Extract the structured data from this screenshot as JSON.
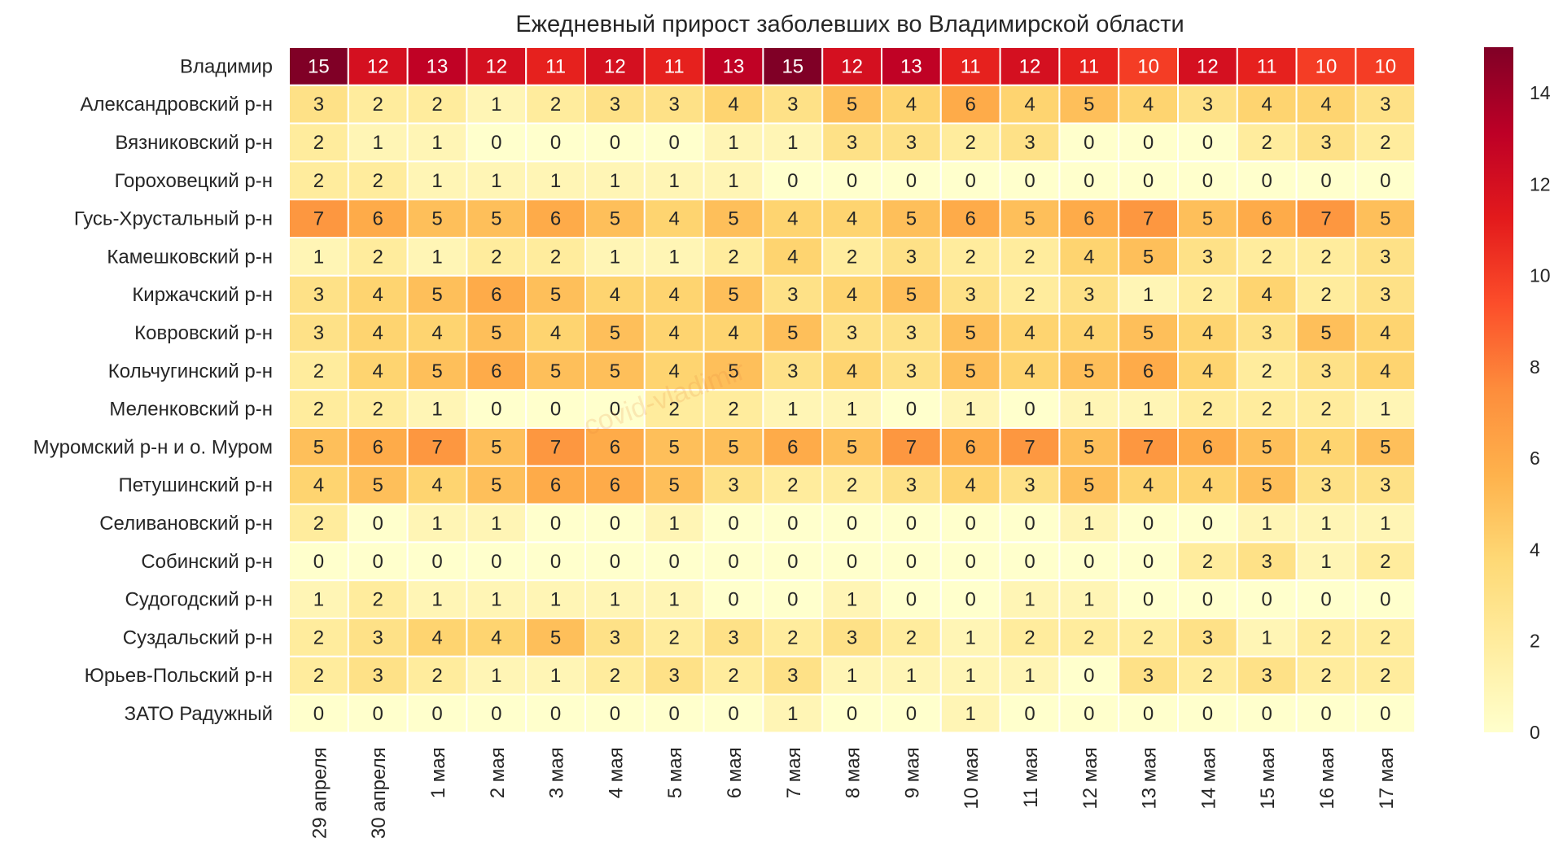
{
  "chart_data": {
    "type": "heatmap",
    "title": "Ежедневный прирост заболевших во Владимирской области",
    "xlabel": "",
    "ylabel": "",
    "watermark": "covid-vladimir",
    "columns": [
      "29 апреля",
      "30 апреля",
      "1 мая",
      "2 мая",
      "3 мая",
      "4 мая",
      "5 мая",
      "6 мая",
      "7 мая",
      "8 мая",
      "9 мая",
      "10 мая",
      "11 мая",
      "12 мая",
      "13 мая",
      "14 мая",
      "15 мая",
      "16 мая",
      "17 мая"
    ],
    "rows": [
      "Владимир",
      "Александровский р-н",
      "Вязниковский р-н",
      "Гороховецкий р-н",
      "Гусь-Хрустальный р-н",
      "Камешковский р-н",
      "Киржачский р-н",
      "Ковровский р-н",
      "Кольчугинский р-н",
      "Меленковский р-н",
      "Муромский р-н и о. Муром",
      "Петушинский р-н",
      "Селивановский р-н",
      "Собинский р-н",
      "Судогодский р-н",
      "Суздальский р-н",
      "Юрьев-Польский р-н",
      "ЗАТО Радужный"
    ],
    "values": [
      [
        15,
        12,
        13,
        12,
        11,
        12,
        11,
        13,
        15,
        12,
        13,
        11,
        12,
        11,
        10,
        12,
        11,
        10,
        10
      ],
      [
        3,
        2,
        2,
        1,
        2,
        3,
        3,
        4,
        3,
        5,
        4,
        6,
        4,
        5,
        4,
        3,
        4,
        4,
        3
      ],
      [
        2,
        1,
        1,
        0,
        0,
        0,
        0,
        1,
        1,
        3,
        3,
        2,
        3,
        0,
        0,
        0,
        2,
        3,
        2
      ],
      [
        2,
        2,
        1,
        1,
        1,
        1,
        1,
        1,
        0,
        0,
        0,
        0,
        0,
        0,
        0,
        0,
        0,
        0,
        0
      ],
      [
        7,
        6,
        5,
        5,
        6,
        5,
        4,
        5,
        4,
        4,
        5,
        6,
        5,
        6,
        7,
        5,
        6,
        7,
        5
      ],
      [
        1,
        2,
        1,
        2,
        2,
        1,
        1,
        2,
        4,
        2,
        3,
        2,
        2,
        4,
        5,
        3,
        2,
        2,
        3
      ],
      [
        3,
        4,
        5,
        6,
        5,
        4,
        4,
        5,
        3,
        4,
        5,
        3,
        2,
        3,
        1,
        2,
        4,
        2,
        3
      ],
      [
        3,
        4,
        4,
        5,
        4,
        5,
        4,
        4,
        5,
        3,
        3,
        5,
        4,
        4,
        5,
        4,
        3,
        5,
        4
      ],
      [
        2,
        4,
        5,
        6,
        5,
        5,
        4,
        5,
        3,
        4,
        3,
        5,
        4,
        5,
        6,
        4,
        2,
        3,
        4
      ],
      [
        2,
        2,
        1,
        0,
        0,
        0,
        2,
        2,
        1,
        1,
        0,
        1,
        0,
        1,
        1,
        2,
        2,
        2,
        1
      ],
      [
        5,
        6,
        7,
        5,
        7,
        6,
        5,
        5,
        6,
        5,
        7,
        6,
        7,
        5,
        7,
        6,
        5,
        4,
        5
      ],
      [
        4,
        5,
        4,
        5,
        6,
        6,
        5,
        3,
        2,
        2,
        3,
        4,
        3,
        5,
        4,
        4,
        5,
        3,
        3
      ],
      [
        2,
        0,
        1,
        1,
        0,
        0,
        1,
        0,
        0,
        0,
        0,
        0,
        0,
        1,
        0,
        0,
        1,
        1,
        1
      ],
      [
        0,
        0,
        0,
        0,
        0,
        0,
        0,
        0,
        0,
        0,
        0,
        0,
        0,
        0,
        0,
        2,
        3,
        1,
        2
      ],
      [
        1,
        2,
        1,
        1,
        1,
        1,
        1,
        0,
        0,
        1,
        0,
        0,
        1,
        1,
        0,
        0,
        0,
        0,
        0
      ],
      [
        2,
        3,
        4,
        4,
        5,
        3,
        2,
        3,
        2,
        3,
        2,
        1,
        2,
        2,
        2,
        3,
        1,
        2,
        2
      ],
      [
        2,
        3,
        2,
        1,
        1,
        2,
        3,
        2,
        3,
        1,
        1,
        1,
        1,
        0,
        3,
        2,
        3,
        2,
        2
      ],
      [
        0,
        0,
        0,
        0,
        0,
        0,
        0,
        0,
        1,
        0,
        0,
        1,
        0,
        0,
        0,
        0,
        0,
        0,
        0
      ]
    ],
    "vmin": 0,
    "vmax": 15,
    "colormap": "YlOrRd",
    "colorbar_ticks": [
      0,
      2,
      4,
      6,
      8,
      10,
      12,
      14
    ],
    "colors": {
      "low": "#ffffcc",
      "high": "#800026",
      "grid": "#ffffff",
      "text_dark": "#262626",
      "text_light": "#ffffff"
    }
  }
}
